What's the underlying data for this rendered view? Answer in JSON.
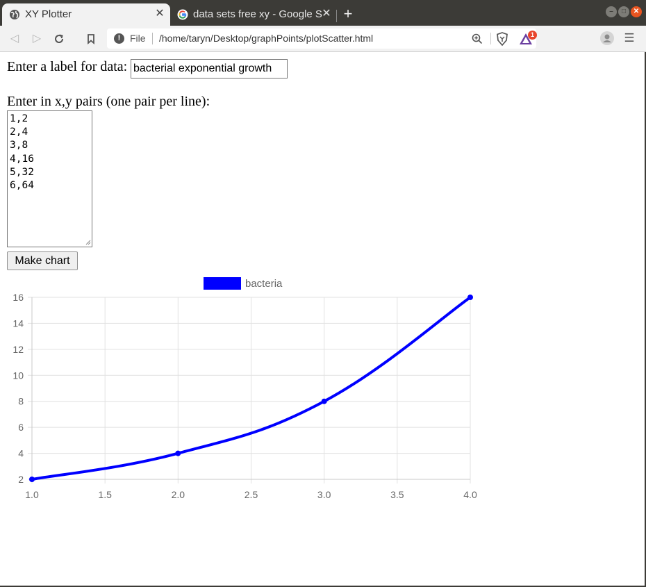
{
  "browser": {
    "tabs": [
      {
        "title": "XY Plotter",
        "icon": "globe-icon",
        "active": true
      },
      {
        "title": "data sets free xy - Google S",
        "icon": "google-icon",
        "active": false
      }
    ],
    "address": {
      "scheme_label": "File",
      "url": "/home/taryn/Desktop/graphPoints/plotScatter.html"
    },
    "rewards_badge": "1",
    "colors": {
      "tabstrip": "#3c3b37",
      "toolbar": "#f2f2f2",
      "accent": "#e95420"
    }
  },
  "form": {
    "label_prompt": "Enter a label for data:",
    "label_value": "bacterial exponential growth",
    "pairs_prompt": "Enter in x,y pairs (one pair per line):",
    "pairs_value": "1,2\n2,4\n3,8\n4,16\n5,32\n6,64",
    "button_label": "Make chart"
  },
  "chart_data": {
    "type": "line",
    "legend": {
      "position": "top-center"
    },
    "series": [
      {
        "name": "bacteria",
        "color": "#0000ff",
        "x": [
          1,
          2,
          3,
          4
        ],
        "y": [
          2,
          4,
          8,
          16
        ]
      }
    ],
    "xlim": [
      1.0,
      4.0
    ],
    "ylim": [
      2,
      16
    ],
    "xticks": [
      "1.0",
      "1.5",
      "2.0",
      "2.5",
      "3.0",
      "3.5",
      "4.0"
    ],
    "yticks": [
      "2",
      "4",
      "6",
      "8",
      "10",
      "12",
      "14",
      "16"
    ],
    "grid": true,
    "smoothed": true
  }
}
